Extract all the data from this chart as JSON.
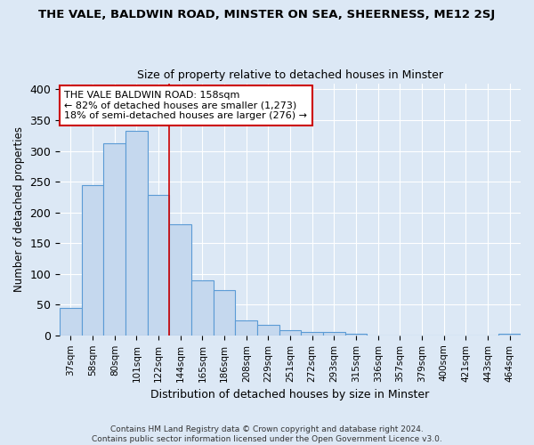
{
  "title": "THE VALE, BALDWIN ROAD, MINSTER ON SEA, SHEERNESS, ME12 2SJ",
  "subtitle": "Size of property relative to detached houses in Minster",
  "xlabel": "Distribution of detached houses by size in Minster",
  "ylabel": "Number of detached properties",
  "categories": [
    "37sqm",
    "58sqm",
    "80sqm",
    "101sqm",
    "122sqm",
    "144sqm",
    "165sqm",
    "186sqm",
    "208sqm",
    "229sqm",
    "251sqm",
    "272sqm",
    "293sqm",
    "315sqm",
    "336sqm",
    "357sqm",
    "379sqm",
    "400sqm",
    "421sqm",
    "443sqm",
    "464sqm"
  ],
  "values": [
    44,
    245,
    313,
    333,
    228,
    180,
    90,
    74,
    25,
    17,
    9,
    5,
    5,
    2,
    0,
    0,
    0,
    0,
    0,
    0,
    3
  ],
  "bar_color": "#c5d8ee",
  "bar_edge_color": "#5b9bd5",
  "annotation_text": "THE VALE BALDWIN ROAD: 158sqm\n← 82% of detached houses are smaller (1,273)\n18% of semi-detached houses are larger (276) →",
  "annotation_box_color": "#ffffff",
  "annotation_box_edge": "#cc0000",
  "vline_color": "#cc0000",
  "vline_x_index": 5,
  "ylim": [
    0,
    410
  ],
  "yticks": [
    0,
    50,
    100,
    150,
    200,
    250,
    300,
    350,
    400
  ],
  "bg_color": "#dce8f5",
  "grid_color": "#ffffff",
  "footer": "Contains HM Land Registry data © Crown copyright and database right 2024.\nContains public sector information licensed under the Open Government Licence v3.0."
}
